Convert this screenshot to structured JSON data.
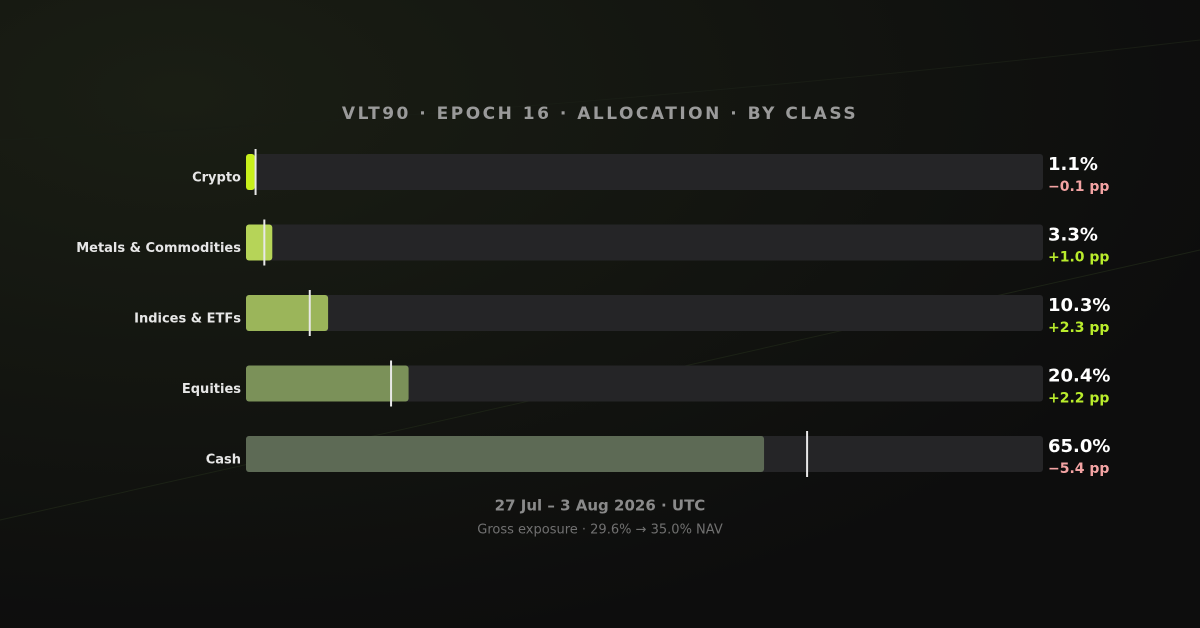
{
  "chart_data": {
    "type": "bar",
    "title": "VLT90 · EPOCH 16 · ALLOCATION · BY CLASS",
    "subtitle": "27 Jul – 3 Aug 2026 · UTC",
    "note": "Gross exposure · 29.6% → 35.0% NAV",
    "categories": [
      "Crypto",
      "Metals & Commodities",
      "Indices & ETFs",
      "Equities",
      "Cash"
    ],
    "values": [
      1.1,
      3.3,
      10.3,
      20.4,
      65.0
    ],
    "value_labels": [
      "1.1%",
      "3.3%",
      "10.3%",
      "20.4%",
      "65.0%"
    ],
    "changes": [
      -0.1,
      1.0,
      2.3,
      2.2,
      -5.4
    ],
    "change_labels": [
      "−0.1 pp",
      "+1.0 pp",
      "+2.3 pp",
      "+2.2 pp",
      "−5.4 pp"
    ],
    "colors": [
      "#c8f01c",
      "#b6d458",
      "#9bb55a",
      "#7b9159",
      "#5d6a55"
    ],
    "positive_color": "#b9ec2c",
    "negative_color": "#f3a3a3",
    "xlim": [
      0,
      100
    ]
  }
}
